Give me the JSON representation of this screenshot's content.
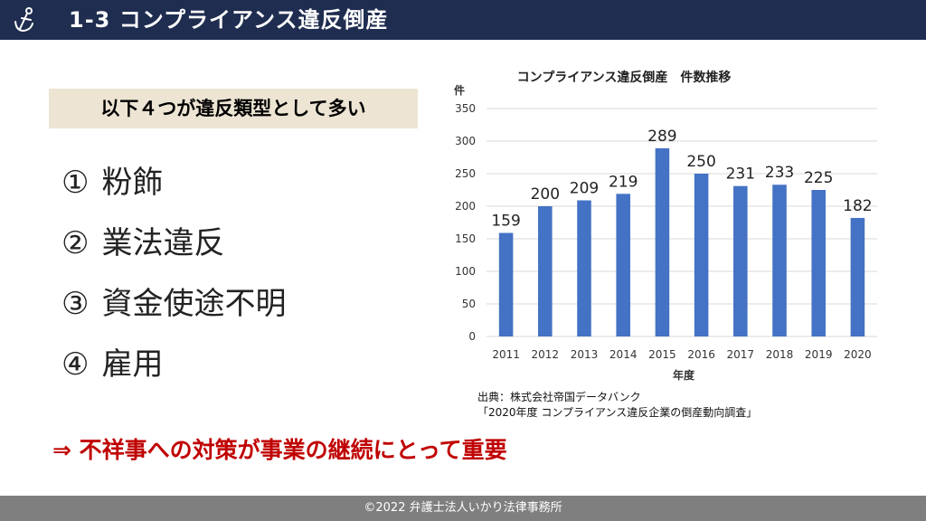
{
  "header": {
    "title": "1-3 コンプライアンス違反倒産",
    "logo_icon": "anchor-icon",
    "background": "#1f2d50"
  },
  "subheading": "以下４つが違反類型として多い",
  "types": [
    {
      "num": "①",
      "label": "粉飾"
    },
    {
      "num": "②",
      "label": "業法違反"
    },
    {
      "num": "③",
      "label": "資金使途不明"
    },
    {
      "num": "④",
      "label": "雇用"
    }
  ],
  "chart_data": {
    "type": "bar",
    "title": "コンプライアンス違反倒産　件数推移",
    "ylabel": "件",
    "xlabel": "年度",
    "categories": [
      "2011",
      "2012",
      "2013",
      "2014",
      "2015",
      "2016",
      "2017",
      "2018",
      "2019",
      "2020"
    ],
    "values": [
      159,
      200,
      209,
      219,
      289,
      250,
      231,
      233,
      225,
      182
    ],
    "yticks": [
      "0",
      "50",
      "100",
      "150",
      "200",
      "250",
      "300",
      "350"
    ],
    "ylim": [
      0,
      350
    ],
    "grid": true,
    "color": "#4472c4"
  },
  "source": {
    "line1": "出典：株式会社帝国データバンク",
    "line2": "「2020年度 コンプライアンス違反企業の倒産動向調査」"
  },
  "conclusion": "⇒ 不祥事への対策が事業の継続にとって重要",
  "footer": "©2022 弁護士法人いかり法律事務所"
}
